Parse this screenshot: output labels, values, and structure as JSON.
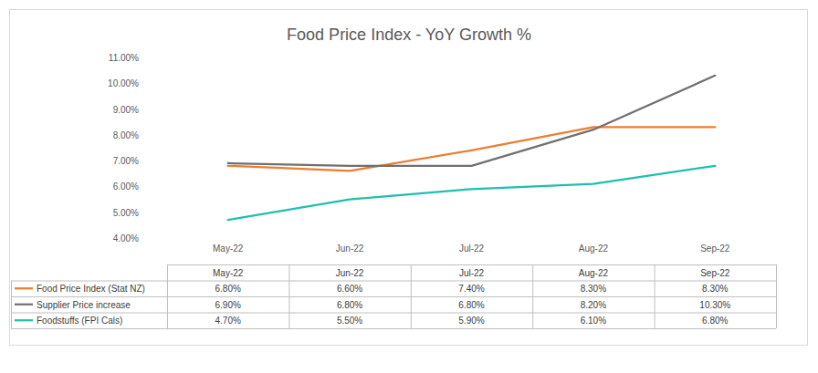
{
  "chart_data": {
    "type": "line",
    "title": "Food Price Index - YoY Growth %",
    "categories": [
      "May-22",
      "Jun-22",
      "Jul-22",
      "Aug-22",
      "Sep-22"
    ],
    "series": [
      {
        "name": "Food Price Index (Stat NZ)",
        "color": "#ED7D31",
        "values": [
          6.8,
          6.6,
          7.4,
          8.3,
          8.3
        ],
        "value_labels": [
          "6.80%",
          "6.60%",
          "7.40%",
          "8.30%",
          "8.30%"
        ]
      },
      {
        "name": "Supplier Price increase",
        "color": "#707070",
        "values": [
          6.9,
          6.8,
          6.8,
          8.2,
          10.3
        ],
        "value_labels": [
          "6.90%",
          "6.80%",
          "6.80%",
          "8.20%",
          "10.30%"
        ]
      },
      {
        "name": "Foodstuffs (FPI Cals)",
        "color": "#1FBFAE",
        "values": [
          4.7,
          5.5,
          5.9,
          6.1,
          6.8
        ],
        "value_labels": [
          "4.70%",
          "5.50%",
          "5.90%",
          "6.10%",
          "6.80%"
        ]
      }
    ],
    "ylim": [
      4,
      11
    ],
    "yticks": [
      {
        "value": 4,
        "label": "4.00%"
      },
      {
        "value": 5,
        "label": "5.00%"
      },
      {
        "value": 6,
        "label": "6.00%"
      },
      {
        "value": 7,
        "label": "7.00%"
      },
      {
        "value": 8,
        "label": "8.00%"
      },
      {
        "value": 9,
        "label": "9.00%"
      },
      {
        "value": 10,
        "label": "10.00%"
      },
      {
        "value": 11,
        "label": "11.00%"
      }
    ],
    "grid": false
  }
}
